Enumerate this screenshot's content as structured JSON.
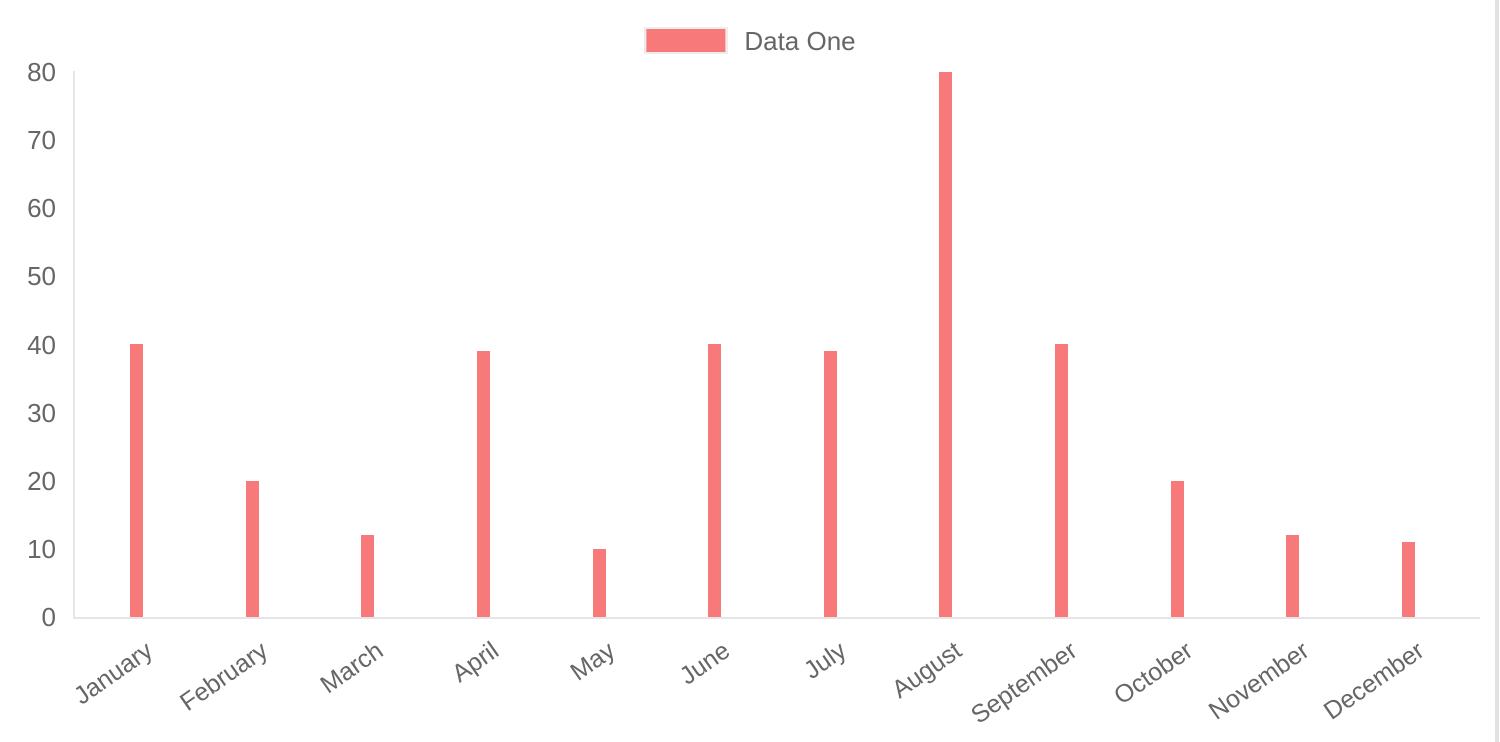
{
  "legend": {
    "label": "Data One"
  },
  "chart_data": {
    "type": "bar",
    "title": "",
    "categories": [
      "January",
      "February",
      "March",
      "April",
      "May",
      "June",
      "July",
      "August",
      "September",
      "October",
      "November",
      "December"
    ],
    "series": [
      {
        "name": "Data One",
        "color": "#f87979",
        "values": [
          40,
          20,
          12,
          39,
          10,
          40,
          39,
          80,
          40,
          20,
          12,
          11
        ]
      }
    ],
    "xlabel": "",
    "ylabel": "",
    "ylim": [
      0,
      80
    ],
    "yticks": [
      0,
      10,
      20,
      30,
      40,
      50,
      60,
      70,
      80
    ],
    "grid": false,
    "legend_position": "top-center",
    "x_label_rotation_deg": -35
  },
  "colors": {
    "bar": "#f87979",
    "axis_line": "#e5e5e5",
    "tick_text": "#666666",
    "legend_box_border": "#ededed",
    "scrollbar": "#e2e2e2"
  }
}
